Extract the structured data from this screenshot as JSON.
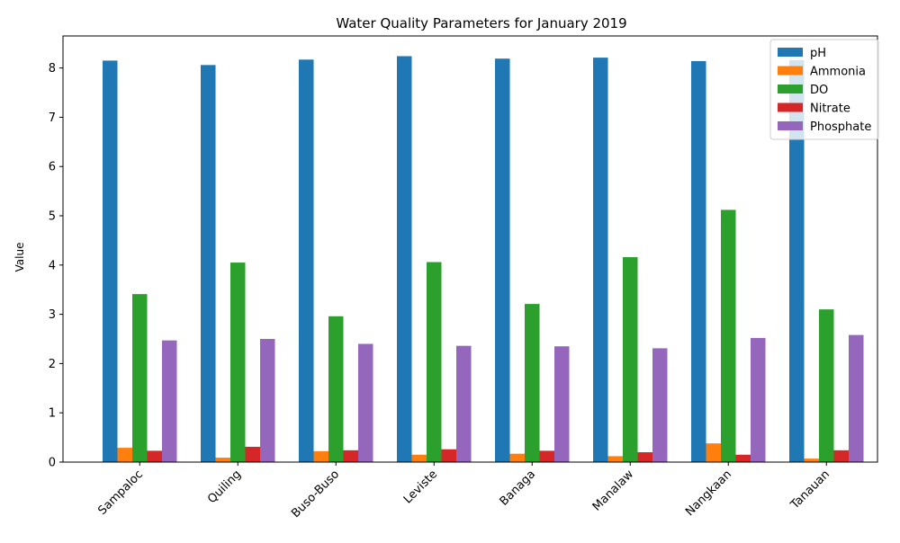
{
  "chart_data": {
    "type": "bar",
    "title": "Water Quality Parameters for January 2019",
    "xlabel": "",
    "ylabel": "Value",
    "ylim": [
      0,
      8.65
    ],
    "yticks": [
      0,
      1,
      2,
      3,
      4,
      5,
      6,
      7,
      8
    ],
    "grid": false,
    "legend_position": "top-right",
    "categories": [
      "Sampaloc",
      "Quiling",
      "Buso-Buso",
      "Leviste",
      "Banaga",
      "Manalaw",
      "Nangkaan",
      "Tanauan"
    ],
    "series": [
      {
        "name": "pH",
        "color": "#1f77b4",
        "values": [
          8.15,
          8.06,
          8.17,
          8.24,
          8.19,
          8.21,
          8.14,
          8.16
        ]
      },
      {
        "name": "Ammonia",
        "color": "#ff7f0e",
        "values": [
          0.29,
          0.09,
          0.22,
          0.15,
          0.17,
          0.12,
          0.38,
          0.07
        ]
      },
      {
        "name": "DO",
        "color": "#2ca02c",
        "values": [
          3.41,
          4.05,
          2.96,
          4.06,
          3.21,
          4.16,
          5.12,
          3.1
        ]
      },
      {
        "name": "Nitrate",
        "color": "#d62728",
        "values": [
          0.23,
          0.31,
          0.24,
          0.26,
          0.23,
          0.2,
          0.15,
          0.24
        ]
      },
      {
        "name": "Phosphate",
        "color": "#9467bd",
        "values": [
          2.47,
          2.5,
          2.4,
          2.36,
          2.35,
          2.31,
          2.52,
          2.58
        ]
      }
    ]
  }
}
